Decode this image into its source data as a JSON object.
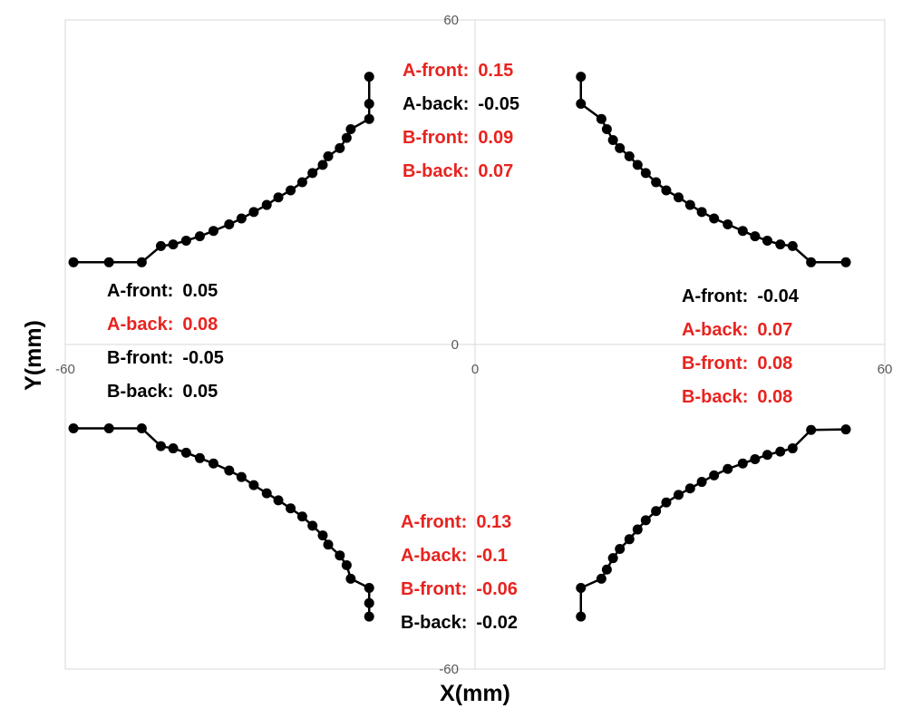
{
  "chart_data": {
    "type": "scatter",
    "title": "",
    "xlabel": "X(mm)",
    "ylabel": "Y(mm)",
    "xlim": [
      -60,
      60
    ],
    "ylim": [
      -60,
      60
    ],
    "x_ticks": [
      "-60",
      "0",
      "60"
    ],
    "y_ticks": [
      "60",
      "0",
      "-60"
    ],
    "grid": false,
    "marker": "circle",
    "line_color": "#000000",
    "series": [
      {
        "points": [
          [
            -15.5,
            49.5
          ],
          [
            -15.5,
            44.5
          ],
          [
            -15.5,
            41.7
          ],
          [
            -18.2,
            39.8
          ],
          [
            -18.8,
            38.2
          ],
          [
            -19.8,
            36.3
          ],
          [
            -21.5,
            34.8
          ],
          [
            -22.3,
            33.2
          ],
          [
            -23.8,
            31.7
          ],
          [
            -25.3,
            30.0
          ],
          [
            -27.0,
            28.5
          ],
          [
            -28.8,
            27.2
          ],
          [
            -30.5,
            25.8
          ],
          [
            -32.4,
            24.5
          ],
          [
            -34.2,
            23.3
          ],
          [
            -36.0,
            22.2
          ],
          [
            -38.3,
            21.0
          ],
          [
            -40.3,
            20.0
          ],
          [
            -42.3,
            19.2
          ],
          [
            -44.2,
            18.5
          ],
          [
            -46.0,
            18.2
          ],
          [
            -48.8,
            15.2
          ],
          [
            -53.6,
            15.2
          ],
          [
            -58.8,
            15.2
          ]
        ]
      },
      {
        "points": [
          [
            15.5,
            49.5
          ],
          [
            15.5,
            44.5
          ],
          [
            18.5,
            41.7
          ],
          [
            19.3,
            39.8
          ],
          [
            20.2,
            37.8
          ],
          [
            21.2,
            36.3
          ],
          [
            22.6,
            34.8
          ],
          [
            23.8,
            33.2
          ],
          [
            25.0,
            31.7
          ],
          [
            26.5,
            30.0
          ],
          [
            28.0,
            28.5
          ],
          [
            29.8,
            27.2
          ],
          [
            31.5,
            25.8
          ],
          [
            33.2,
            24.5
          ],
          [
            35.0,
            23.3
          ],
          [
            37.0,
            22.2
          ],
          [
            39.2,
            21.0
          ],
          [
            41.0,
            20.0
          ],
          [
            42.8,
            19.2
          ],
          [
            44.7,
            18.5
          ],
          [
            46.5,
            18.2
          ],
          [
            49.2,
            15.2
          ],
          [
            54.3,
            15.2
          ]
        ]
      },
      {
        "points": [
          [
            -58.8,
            -15.5
          ],
          [
            -53.6,
            -15.5
          ],
          [
            -48.8,
            -15.5
          ],
          [
            -46.0,
            -18.8
          ],
          [
            -44.2,
            -19.2
          ],
          [
            -42.3,
            -20.0
          ],
          [
            -40.3,
            -21.0
          ],
          [
            -38.3,
            -22.0
          ],
          [
            -36.0,
            -23.3
          ],
          [
            -34.2,
            -24.5
          ],
          [
            -32.4,
            -26.0
          ],
          [
            -30.5,
            -27.5
          ],
          [
            -28.8,
            -28.8
          ],
          [
            -27.0,
            -30.3
          ],
          [
            -25.3,
            -31.8
          ],
          [
            -23.8,
            -33.5
          ],
          [
            -22.3,
            -35.3
          ],
          [
            -21.5,
            -37.0
          ],
          [
            -19.8,
            -39.0
          ],
          [
            -18.8,
            -40.8
          ],
          [
            -18.2,
            -43.3
          ],
          [
            -15.5,
            -45.0
          ],
          [
            -15.5,
            -47.8
          ],
          [
            -15.5,
            -50.3
          ]
        ]
      },
      {
        "points": [
          [
            54.3,
            -15.7
          ],
          [
            49.2,
            -15.8
          ],
          [
            46.5,
            -19.2
          ],
          [
            44.7,
            -19.8
          ],
          [
            42.8,
            -20.4
          ],
          [
            41.0,
            -21.2
          ],
          [
            39.2,
            -22.0
          ],
          [
            37.0,
            -23.0
          ],
          [
            35.0,
            -24.2
          ],
          [
            33.2,
            -25.4
          ],
          [
            31.5,
            -26.6
          ],
          [
            29.8,
            -27.8
          ],
          [
            28.0,
            -29.2
          ],
          [
            26.5,
            -30.8
          ],
          [
            25.0,
            -32.5
          ],
          [
            23.8,
            -34.2
          ],
          [
            22.6,
            -36.0
          ],
          [
            21.2,
            -37.8
          ],
          [
            20.2,
            -39.5
          ],
          [
            19.3,
            -41.6
          ],
          [
            18.5,
            -43.3
          ],
          [
            15.5,
            -45.0
          ],
          [
            15.5,
            -50.3
          ]
        ]
      }
    ],
    "annotations": [
      {
        "lines": [
          {
            "label": "A-front:",
            "value": "0.15",
            "color": "#e8231f"
          },
          {
            "label": "A-back:",
            "value": "-0.05",
            "color": "#000000"
          },
          {
            "label": "B-front:",
            "value": "0.09",
            "color": "#e8231f"
          },
          {
            "label": "B-back:",
            "value": "0.07",
            "color": "#e8231f"
          }
        ]
      },
      {
        "lines": [
          {
            "label": "A-front:",
            "value": "0.05",
            "color": "#000000"
          },
          {
            "label": "A-back:",
            "value": "0.08",
            "color": "#e8231f"
          },
          {
            "label": "B-front:",
            "value": "-0.05",
            "color": "#000000"
          },
          {
            "label": "B-back:",
            "value": "0.05",
            "color": "#000000"
          }
        ]
      },
      {
        "lines": [
          {
            "label": "A-front:",
            "value": "-0.04",
            "color": "#000000"
          },
          {
            "label": "A-back:",
            "value": "0.07",
            "color": "#e8231f"
          },
          {
            "label": "B-front:",
            "value": "0.08",
            "color": "#e8231f"
          },
          {
            "label": "B-back:",
            "value": "0.08",
            "color": "#e8231f"
          }
        ]
      },
      {
        "lines": [
          {
            "label": "A-front:",
            "value": "0.13",
            "color": "#e8231f"
          },
          {
            "label": "A-back:",
            "value": "-0.1",
            "color": "#e8231f"
          },
          {
            "label": "B-front:",
            "value": "-0.06",
            "color": "#e8231f"
          },
          {
            "label": "B-back:",
            "value": "-0.02",
            "color": "#000000"
          }
        ]
      }
    ]
  }
}
